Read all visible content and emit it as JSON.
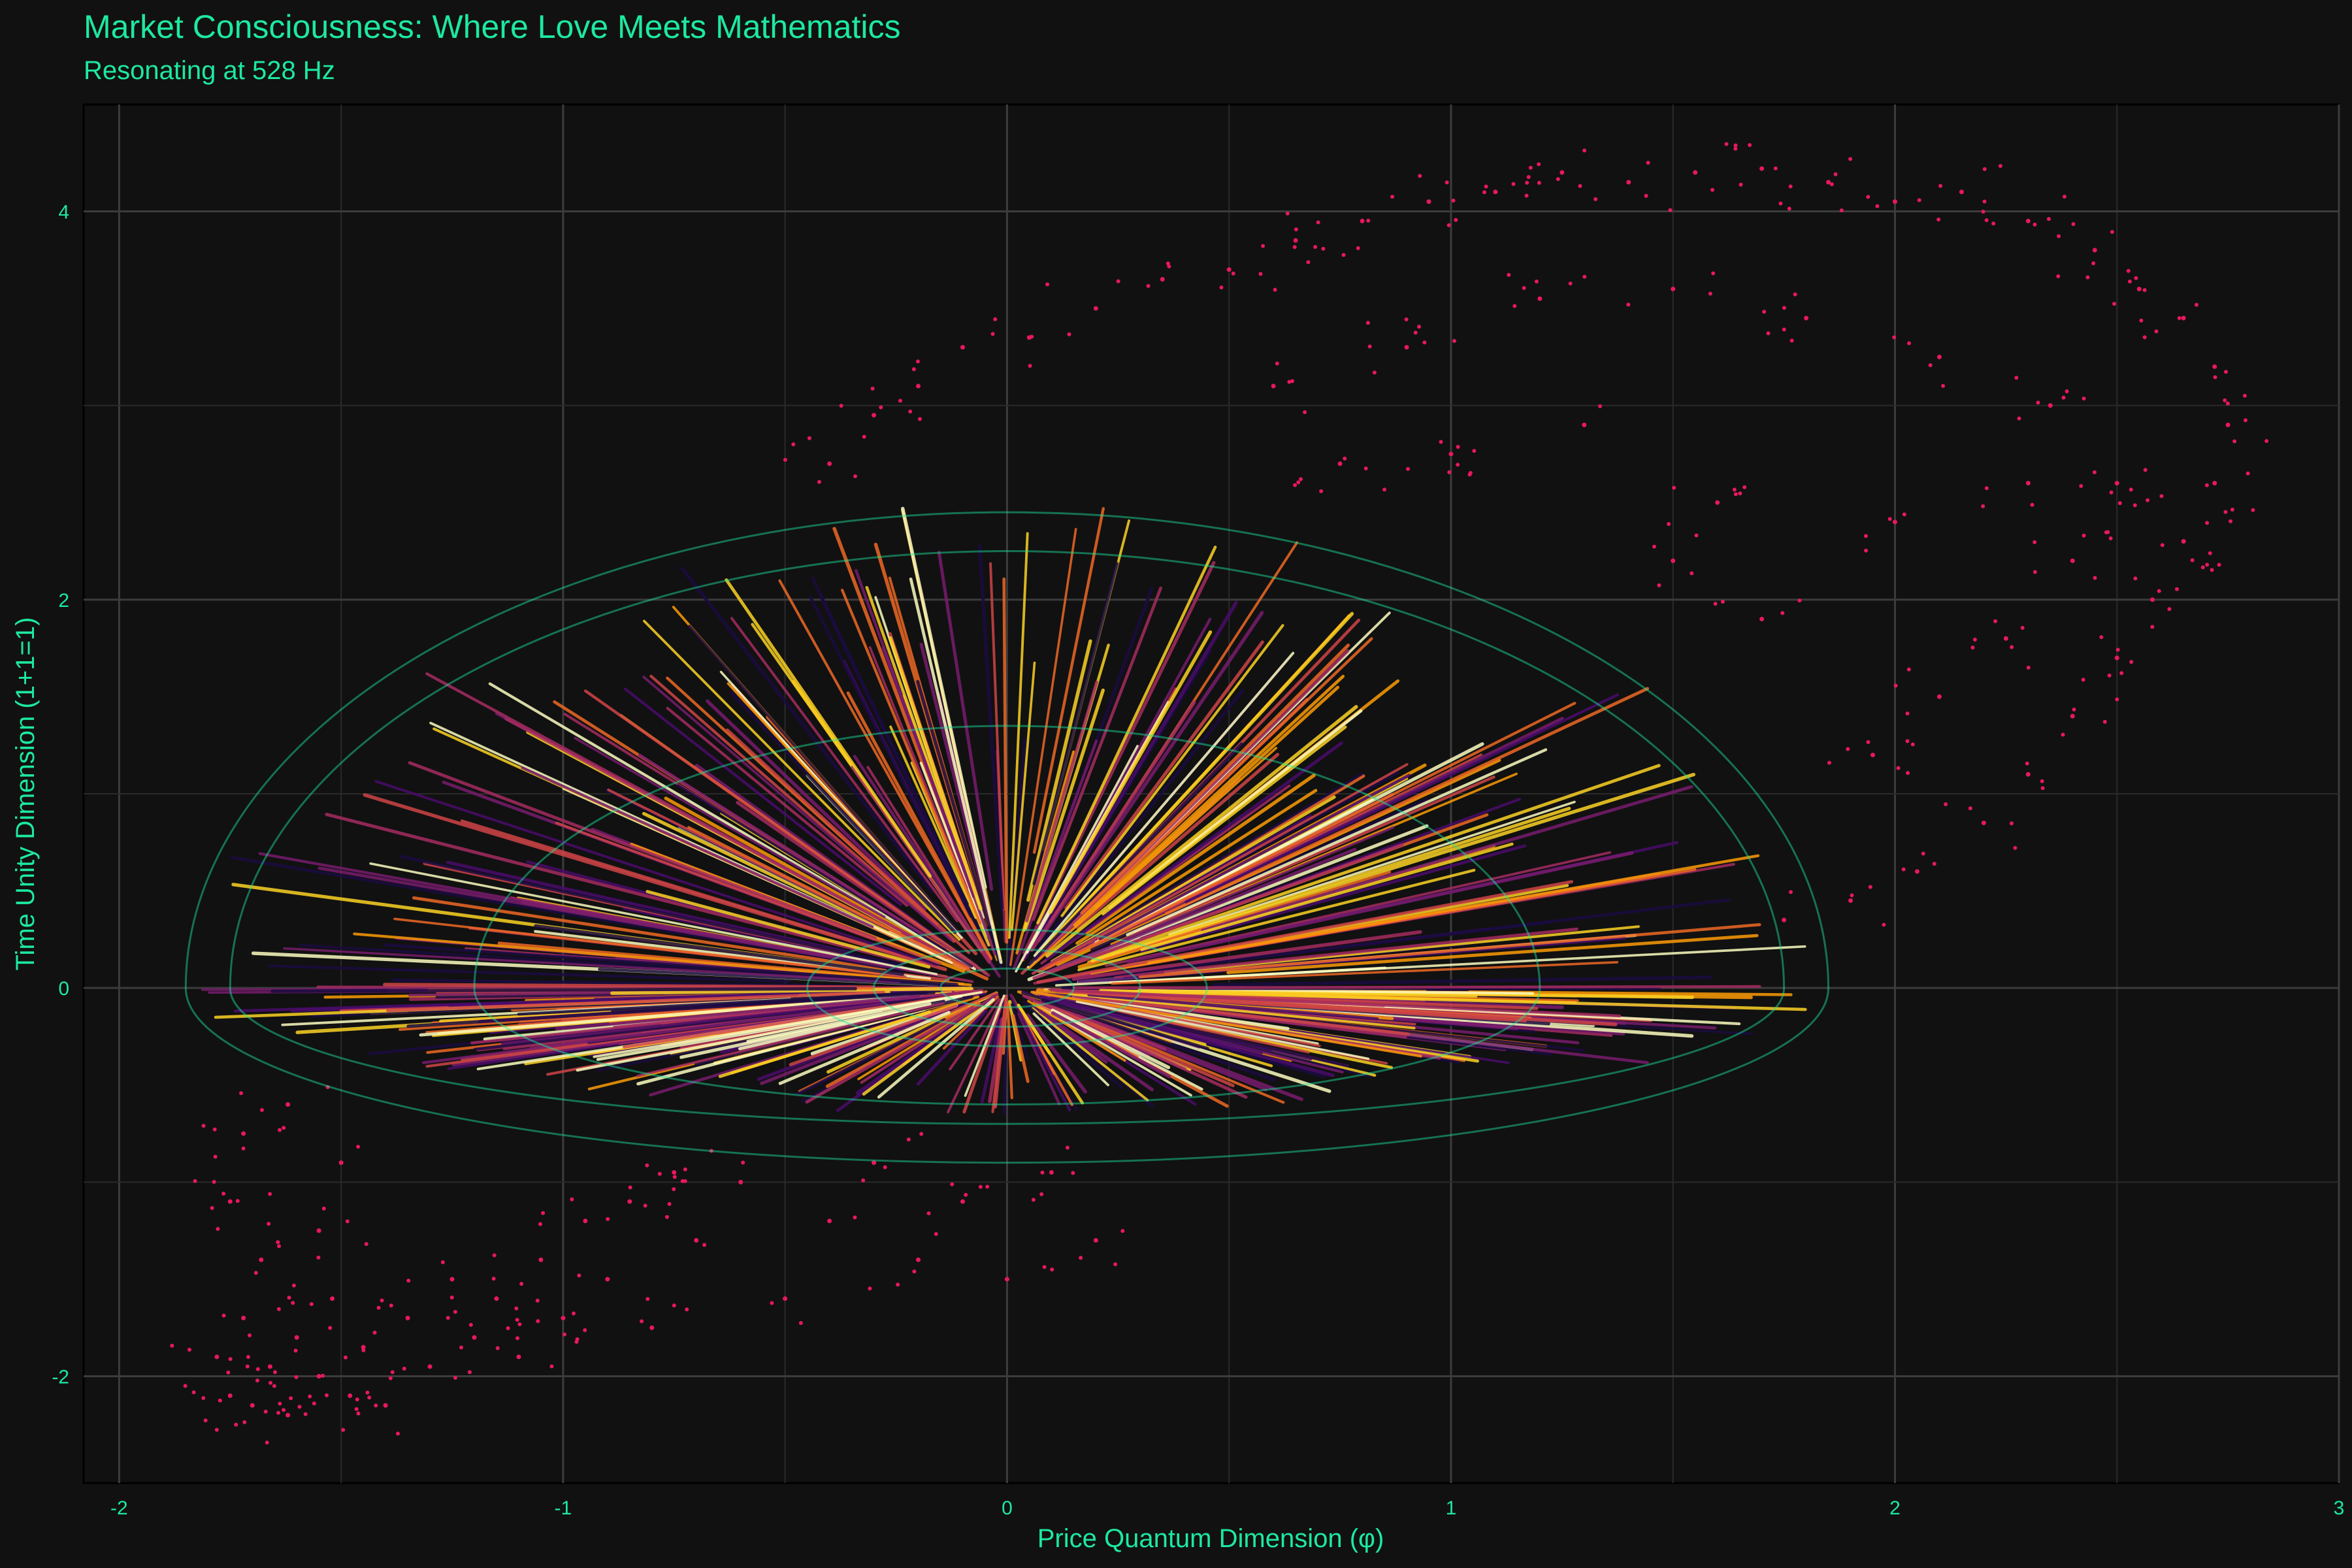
{
  "chart_data": {
    "type": "scatter",
    "title": "Market Consciousness: Where Love Meets Mathematics",
    "subtitle": "Resonating at 528 Hz",
    "xlabel": "Price Quantum Dimension (φ)",
    "ylabel": "Time Unity Dimension (1+1=1)",
    "xlim": [
      -2.08,
      3.0
    ],
    "ylim": [
      -2.55,
      4.55
    ],
    "x_ticks": [
      -2,
      -1,
      0,
      1,
      2,
      3
    ],
    "y_ticks": [
      -2,
      0,
      2,
      4
    ],
    "grid": true,
    "background": "#111111",
    "grid_color": "#3a3a3a",
    "text_color": "#1de9a0",
    "scatter_color": "#e8185f",
    "contour_color": "#1de9a0",
    "vector_palette": [
      "#1b0c41",
      "#4a0c6b",
      "#781c6d",
      "#a52c60",
      "#cf4446",
      "#ed6925",
      "#fb9b06",
      "#fcd225",
      "#fcfdbf"
    ],
    "series": [
      {
        "type": "scatter",
        "points": [
          [
            -1.78,
            -1.9
          ],
          [
            -1.75,
            -2.1
          ],
          [
            -1.72,
            -1.7
          ],
          [
            -1.7,
            -2.15
          ],
          [
            -1.66,
            -1.95
          ],
          [
            -1.62,
            -2.2
          ],
          [
            -1.6,
            -1.8
          ],
          [
            -1.55,
            -2.0
          ],
          [
            -1.52,
            -1.6
          ],
          [
            -1.48,
            -2.1
          ],
          [
            -1.45,
            -1.85
          ],
          [
            -1.4,
            -2.15
          ],
          [
            -1.35,
            -1.7
          ],
          [
            -1.3,
            -1.95
          ],
          [
            -1.25,
            -1.5
          ],
          [
            -1.2,
            -1.8
          ],
          [
            -1.15,
            -1.6
          ],
          [
            -1.1,
            -1.9
          ],
          [
            -1.05,
            -1.4
          ],
          [
            -1.0,
            -1.7
          ],
          [
            -0.95,
            -1.2
          ],
          [
            -0.9,
            -1.5
          ],
          [
            -0.85,
            -1.1
          ],
          [
            -0.8,
            -1.75
          ],
          [
            -0.75,
            -0.95
          ],
          [
            -0.7,
            -1.3
          ],
          [
            -0.6,
            -1.0
          ],
          [
            -0.5,
            -1.6
          ],
          [
            -0.4,
            -1.2
          ],
          [
            -0.3,
            -0.9
          ],
          [
            -0.2,
            -1.4
          ],
          [
            -0.1,
            -1.1
          ],
          [
            0.0,
            -1.5
          ],
          [
            0.1,
            -0.95
          ],
          [
            0.2,
            -1.3
          ],
          [
            -1.75,
            -1.1
          ],
          [
            -1.72,
            -0.75
          ],
          [
            -1.68,
            -1.4
          ],
          [
            -1.62,
            -0.6
          ],
          [
            -1.55,
            -1.25
          ],
          [
            -1.5,
            -0.9
          ],
          [
            -0.4,
            2.7
          ],
          [
            -0.3,
            2.95
          ],
          [
            -0.2,
            3.1
          ],
          [
            -0.1,
            3.3
          ],
          [
            0.05,
            3.35
          ],
          [
            0.2,
            3.5
          ],
          [
            0.35,
            3.65
          ],
          [
            0.5,
            3.7
          ],
          [
            0.65,
            3.85
          ],
          [
            0.8,
            3.95
          ],
          [
            0.95,
            4.05
          ],
          [
            1.1,
            4.1
          ],
          [
            1.25,
            4.2
          ],
          [
            1.4,
            4.15
          ],
          [
            1.55,
            4.2
          ],
          [
            1.7,
            4.22
          ],
          [
            1.85,
            4.15
          ],
          [
            2.0,
            4.05
          ],
          [
            2.15,
            4.1
          ],
          [
            2.3,
            3.95
          ],
          [
            2.45,
            3.8
          ],
          [
            2.55,
            3.6
          ],
          [
            2.65,
            3.45
          ],
          [
            2.72,
            3.2
          ],
          [
            2.75,
            2.9
          ],
          [
            2.72,
            2.6
          ],
          [
            2.65,
            2.3
          ],
          [
            2.58,
            2.0
          ],
          [
            2.5,
            1.7
          ],
          [
            2.4,
            1.4
          ],
          [
            2.3,
            1.1
          ],
          [
            2.2,
            0.85
          ],
          [
            2.05,
            0.6
          ],
          [
            1.9,
            0.45
          ],
          [
            1.75,
            0.35
          ],
          [
            0.6,
            3.1
          ],
          [
            0.9,
            3.3
          ],
          [
            1.2,
            3.55
          ],
          [
            1.5,
            3.6
          ],
          [
            1.8,
            3.45
          ],
          [
            2.1,
            3.25
          ],
          [
            2.35,
            3.0
          ],
          [
            2.5,
            2.6
          ],
          [
            2.4,
            2.2
          ],
          [
            2.25,
            1.8
          ],
          [
            2.1,
            1.5
          ],
          [
            1.95,
            1.2
          ],
          [
            1.6,
            2.5
          ],
          [
            1.3,
            2.9
          ],
          [
            1.0,
            2.75
          ],
          [
            0.75,
            2.7
          ],
          [
            1.7,
            1.9
          ],
          [
            1.5,
            2.2
          ],
          [
            2.0,
            2.4
          ],
          [
            2.3,
            2.6
          ]
        ]
      },
      {
        "type": "vector_field",
        "origin": [
          0.0,
          0.0
        ],
        "description_counts": {
          "rays": 520
        }
      },
      {
        "type": "contour",
        "levels": [
          {
            "rx": 1.85,
            "ry_up": 2.45,
            "ry_down": 0.9
          },
          {
            "rx": 1.75,
            "ry_up": 2.25,
            "ry_down": 0.7
          },
          {
            "rx": 1.2,
            "ry_up": 1.35,
            "ry_down": 0.6
          },
          {
            "rx": 0.45,
            "ry_up": 0.3,
            "ry_down": 0.3
          },
          {
            "rx": 0.3,
            "ry_up": 0.2,
            "ry_down": 0.2
          },
          {
            "rx": 0.15,
            "ry_up": 0.1,
            "ry_down": 0.1
          }
        ]
      }
    ]
  }
}
